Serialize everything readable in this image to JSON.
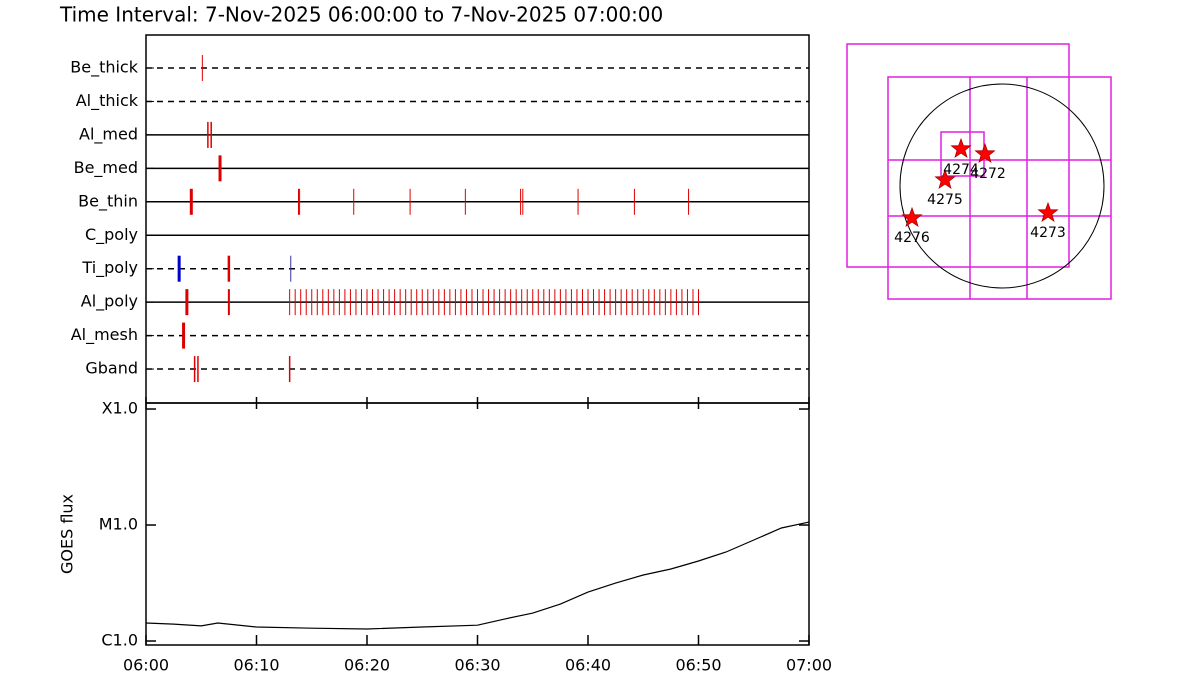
{
  "title": "Time Interval:  7-Nov-2025 06:00:00 to  7-Nov-2025 07:00:00",
  "chart_data": [
    {
      "type": "timeline",
      "xlim": [
        0,
        60
      ],
      "series": [
        {
          "name": "Be_thick",
          "style": "dashed",
          "groups": [
            {
              "color": "#dd0000",
              "width": 1,
              "times": [
                5.1
              ]
            }
          ]
        },
        {
          "name": "Al_thick",
          "style": "dashed",
          "groups": []
        },
        {
          "name": "Al_med",
          "style": "solid",
          "groups": [
            {
              "color": "#dd0000",
              "width": 1.5,
              "times": [
                5.6,
                5.9
              ]
            }
          ]
        },
        {
          "name": "Be_med",
          "style": "solid",
          "groups": [
            {
              "color": "#dd0000",
              "width": 3,
              "times": [
                6.7
              ]
            }
          ]
        },
        {
          "name": "Be_thin",
          "style": "solid",
          "groups": [
            {
              "color": "#dd0000",
              "width": 3,
              "times": [
                4.1
              ]
            },
            {
              "color": "#dd0000",
              "width": 1,
              "times": [
                13.8,
                13.9,
                18.8,
                23.9,
                28.9,
                33.9,
                34.1,
                39.1,
                44.2,
                49.1
              ]
            }
          ]
        },
        {
          "name": "C_poly",
          "style": "solid",
          "groups": []
        },
        {
          "name": "Ti_poly",
          "style": "dashed",
          "groups": [
            {
              "color": "#0000cc",
              "width": 3,
              "times": [
                3.0
              ]
            },
            {
              "color": "#dd0000",
              "width": 2.5,
              "times": [
                7.5
              ]
            },
            {
              "color": "#333399",
              "width": 1,
              "times": [
                13.1
              ]
            }
          ]
        },
        {
          "name": "Al_poly",
          "style": "solid",
          "groups": [
            {
              "color": "#dd0000",
              "width": 3,
              "times": [
                3.7
              ]
            },
            {
              "color": "#dd0000",
              "width": 2,
              "times": [
                7.5
              ]
            },
            {
              "color": "#dd0000",
              "width": 1,
              "times": [
                13.0,
                13.5,
                14.0,
                14.5,
                15.0,
                15.5,
                16.0,
                16.5,
                17.0,
                17.5,
                18.0,
                18.5,
                19.0,
                19.5,
                20.0,
                20.5,
                21.0,
                21.5,
                22.0,
                22.5,
                23.0,
                23.5,
                24.0,
                24.5,
                25.0,
                25.5,
                26.0,
                26.5,
                27.0,
                27.5,
                28.0,
                28.5,
                29.0,
                29.5,
                30.0,
                30.5,
                31.0,
                31.5,
                32.0,
                32.5,
                33.0,
                33.5,
                34.0,
                34.5,
                35.0,
                35.5,
                36.0,
                36.5,
                37.0,
                37.5,
                38.0,
                38.5,
                39.0,
                39.5,
                40.0,
                40.5,
                41.0,
                41.5,
                42.0,
                42.5,
                43.0,
                43.5,
                44.0,
                44.5,
                45.0,
                45.5,
                46.0,
                46.5,
                47.0,
                47.5,
                48.0,
                48.5,
                49.0,
                49.5,
                50.0
              ]
            }
          ]
        },
        {
          "name": "Al_mesh",
          "style": "dashed",
          "groups": [
            {
              "color": "#dd0000",
              "width": 3,
              "times": [
                3.4
              ]
            }
          ]
        },
        {
          "name": "Gband",
          "style": "dashed",
          "groups": [
            {
              "color": "#dd0000",
              "width": 1.5,
              "times": [
                4.4,
                4.7,
                13.0
              ]
            }
          ]
        }
      ]
    },
    {
      "type": "line",
      "ylabel": "GOES flux",
      "log": true,
      "color": "#000000",
      "xlim": [
        0,
        60
      ],
      "ylim": [
        9.24e-07,
        0.0001127
      ],
      "xticks": [
        {
          "value": 0,
          "label": "06:00"
        },
        {
          "value": 10,
          "label": "06:10"
        },
        {
          "value": 20,
          "label": "06:20"
        },
        {
          "value": 30,
          "label": "06:30"
        },
        {
          "value": 40,
          "label": "06:40"
        },
        {
          "value": 50,
          "label": "06:50"
        },
        {
          "value": 60,
          "label": "07:00"
        }
      ],
      "yticks": [
        {
          "value": 1e-06,
          "label": "C1.0"
        },
        {
          "value": 1e-05,
          "label": "M1.0"
        },
        {
          "value": 0.0001,
          "label": "X1.0"
        }
      ],
      "x": [
        0,
        2.5,
        5,
        6.5,
        10,
        15,
        20,
        25,
        30,
        32.5,
        35,
        37.5,
        40,
        42.5,
        45,
        47.5,
        50,
        52.5,
        55,
        57.5,
        60
      ],
      "values": [
        1.43e-06,
        1.4e-06,
        1.35e-06,
        1.43e-06,
        1.32e-06,
        1.29e-06,
        1.27e-06,
        1.32e-06,
        1.37e-06,
        1.55e-06,
        1.74e-06,
        2.08e-06,
        2.64e-06,
        3.16e-06,
        3.71e-06,
        4.18e-06,
        4.9e-06,
        5.85e-06,
        7.43e-06,
        9.42e-06,
        1.06e-05
      ]
    }
  ],
  "map": {
    "regions": [
      {
        "label": "4274"
      },
      {
        "label": "4272"
      },
      {
        "label": "4275"
      },
      {
        "label": "4276"
      },
      {
        "label": "4273"
      }
    ]
  }
}
